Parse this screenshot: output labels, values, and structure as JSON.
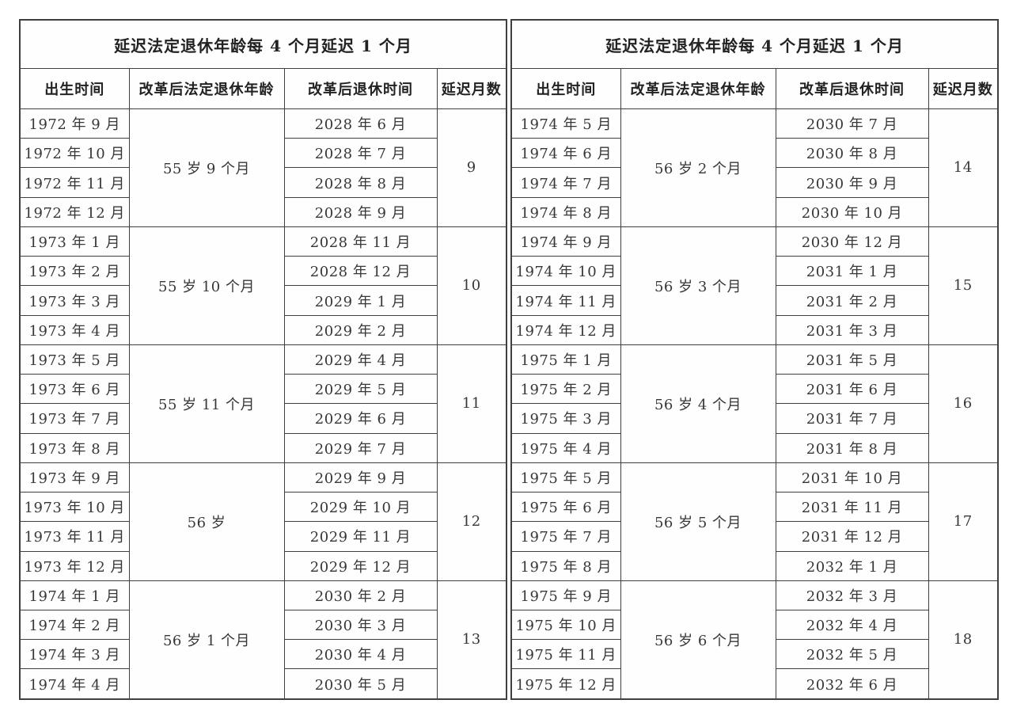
{
  "page": {
    "background_color": "#ffffff",
    "border_color": "#3f3f3f",
    "text_color": "#373737"
  },
  "tables": [
    {
      "title": "延迟法定退休年龄每 4 个月延迟 1 个月",
      "headers": [
        "出生时间",
        "改革后法定退休年龄",
        "改革后退休时间",
        "延迟月数"
      ],
      "groups": [
        {
          "births": [
            "1972 年 9 月",
            "1972 年 10 月",
            "1972 年 11 月",
            "1972 年 12 月"
          ],
          "age": "55 岁 9 个月",
          "retirements": [
            "2028 年 6 月",
            "2028 年 7 月",
            "2028 年 8 月",
            "2028 年 9 月"
          ],
          "delay": "9"
        },
        {
          "births": [
            "1973 年 1 月",
            "1973 年 2 月",
            "1973 年 3 月",
            "1973 年 4 月"
          ],
          "age": "55 岁 10 个月",
          "retirements": [
            "2028 年 11 月",
            "2028 年 12 月",
            "2029 年 1 月",
            "2029 年 2 月"
          ],
          "delay": "10"
        },
        {
          "births": [
            "1973 年 5 月",
            "1973 年 6 月",
            "1973 年 7 月",
            "1973 年 8 月"
          ],
          "age": "55 岁 11 个月",
          "retirements": [
            "2029 年 4 月",
            "2029 年 5 月",
            "2029 年 6 月",
            "2029 年 7 月"
          ],
          "delay": "11"
        },
        {
          "births": [
            "1973 年 9 月",
            "1973 年 10 月",
            "1973 年 11 月",
            "1973 年 12 月"
          ],
          "age": "56 岁",
          "retirements": [
            "2029 年 9 月",
            "2029 年 10 月",
            "2029 年 11 月",
            "2029 年 12 月"
          ],
          "delay": "12"
        },
        {
          "births": [
            "1974 年 1 月",
            "1974 年 2 月",
            "1974 年 3 月",
            "1974 年 4 月"
          ],
          "age": "56 岁 1 个月",
          "retirements": [
            "2030 年 2 月",
            "2030 年 3 月",
            "2030 年 4 月",
            "2030 年 5 月"
          ],
          "delay": "13"
        }
      ]
    },
    {
      "title": "延迟法定退休年龄每 4 个月延迟 1 个月",
      "headers": [
        "出生时间",
        "改革后法定退休年龄",
        "改革后退休时间",
        "延迟月数"
      ],
      "groups": [
        {
          "births": [
            "1974 年 5 月",
            "1974 年 6 月",
            "1974 年 7 月",
            "1974 年 8 月"
          ],
          "age": "56 岁 2 个月",
          "retirements": [
            "2030 年 7 月",
            "2030 年 8 月",
            "2030 年 9 月",
            "2030 年 10 月"
          ],
          "delay": "14"
        },
        {
          "births": [
            "1974 年 9 月",
            "1974 年 10 月",
            "1974 年 11 月",
            "1974 年 12 月"
          ],
          "age": "56 岁 3 个月",
          "retirements": [
            "2030 年 12 月",
            "2031 年 1 月",
            "2031 年 2 月",
            "2031 年 3 月"
          ],
          "delay": "15"
        },
        {
          "births": [
            "1975 年 1 月",
            "1975 年 2 月",
            "1975 年 3 月",
            "1975 年 4 月"
          ],
          "age": "56 岁 4 个月",
          "retirements": [
            "2031 年 5 月",
            "2031 年 6 月",
            "2031 年 7 月",
            "2031 年 8 月"
          ],
          "delay": "16"
        },
        {
          "births": [
            "1975 年 5 月",
            "1975 年 6 月",
            "1975 年 7 月",
            "1975 年 8 月"
          ],
          "age": "56 岁 5 个月",
          "retirements": [
            "2031 年 10 月",
            "2031 年 11 月",
            "2031 年 12 月",
            "2032 年 1 月"
          ],
          "delay": "17"
        },
        {
          "births": [
            "1975 年 9 月",
            "1975 年 10 月",
            "1975 年 11 月",
            "1975 年 12 月"
          ],
          "age": "56 岁 6 个月",
          "retirements": [
            "2032 年 3 月",
            "2032 年 4 月",
            "2032 年 5 月",
            "2032 年 6 月"
          ],
          "delay": "18"
        }
      ]
    }
  ]
}
